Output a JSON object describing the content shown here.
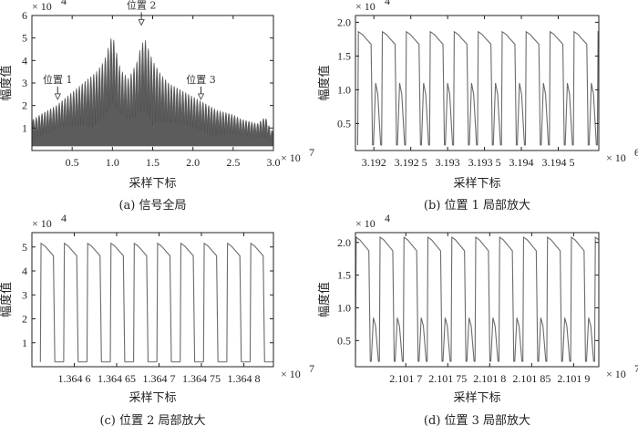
{
  "chart_data": [
    {
      "id": "a",
      "type": "area",
      "caption": "(a) 信号全局",
      "xlabel": "采样下标",
      "ylabel": "幅度值",
      "x_exponent": "× 10",
      "x_exponent_power": "7",
      "y_exponent": "× 10",
      "y_exponent_power": "4",
      "xlim": [
        0,
        3.0
      ],
      "ylim": [
        0,
        6
      ],
      "xticks": [
        0.5,
        1.0,
        1.5,
        2.0,
        2.5,
        3.0
      ],
      "xtick_labels": [
        "0.5",
        "1.0",
        "1.5",
        "2.0",
        "2.5",
        "3.0"
      ],
      "yticks": [
        1,
        2,
        3,
        4,
        5,
        6
      ],
      "ytick_labels": [
        "1",
        "2",
        "3",
        "4",
        "5",
        "6"
      ],
      "series": [
        {
          "x": [
            0.02,
            0.1,
            0.2,
            0.3,
            0.4,
            0.5,
            0.6,
            0.7,
            0.8,
            0.9,
            0.95,
            1.0,
            1.05,
            1.1,
            1.2,
            1.3,
            1.35,
            1.4,
            1.5,
            1.6,
            1.7,
            1.8,
            1.9,
            2.0,
            2.1,
            2.2,
            2.3,
            2.4,
            2.5,
            2.6,
            2.7,
            2.8,
            2.9,
            2.97
          ],
          "y": [
            1.4,
            1.6,
            1.8,
            2.0,
            2.3,
            2.6,
            2.9,
            3.2,
            3.5,
            4.0,
            4.6,
            5.2,
            4.4,
            3.6,
            3.2,
            3.9,
            4.6,
            5.0,
            4.0,
            3.4,
            3.0,
            2.8,
            2.6,
            2.4,
            2.2,
            2.0,
            1.8,
            1.7,
            1.6,
            1.4,
            1.3,
            1.2,
            1.5,
            0.9
          ],
          "floor": 0.2
        }
      ],
      "annotations": [
        {
          "text": "位置 1",
          "x": 0.32,
          "y": 2.6
        },
        {
          "text": "位置 2",
          "x": 1.36,
          "y": 5.9
        },
        {
          "text": "位置 3",
          "x": 2.1,
          "y": 2.6
        }
      ]
    },
    {
      "id": "b",
      "type": "line",
      "caption": "(b) 位置 1 局部放大",
      "xlabel": "采样下标",
      "ylabel": "幅度值",
      "x_exponent": "× 10",
      "x_exponent_power": "6",
      "y_exponent": "× 10",
      "y_exponent_power": "4",
      "xlim": [
        3.19175,
        3.19505
      ],
      "ylim": [
        0.1,
        2.1
      ],
      "xticks": [
        3.192,
        3.1925,
        3.193,
        3.1935,
        3.194,
        3.1945
      ],
      "xtick_labels": [
        "3.192",
        "3.192 5",
        "3.193",
        "3.193 5",
        "3.194",
        "3.194 5"
      ],
      "yticks": [
        0.5,
        1.0,
        1.5,
        2.0
      ],
      "ytick_labels": [
        "0.5",
        "1.0",
        "1.5",
        "2.0"
      ],
      "pulses": {
        "start": 3.19178,
        "period": 0.000325,
        "high_peak": 1.86,
        "low_peak": 1.1,
        "base": 0.18
      }
    },
    {
      "id": "c",
      "type": "line",
      "caption": "(c) 位置 2 局部放大",
      "xlabel": "采样下标",
      "ylabel": "幅度值",
      "x_exponent": "× 10",
      "x_exponent_power": "7",
      "y_exponent": "× 10",
      "y_exponent_power": "4",
      "xlim": [
        1.36455,
        1.364835
      ],
      "ylim": [
        0,
        5.6
      ],
      "xticks": [
        1.3646,
        1.36465,
        1.3647,
        1.36475,
        1.3648
      ],
      "xtick_labels": [
        "1.364 6",
        "1.364 65",
        "1.364 7",
        "1.364 75",
        "1.364 8"
      ],
      "yticks": [
        1,
        2,
        3,
        4,
        5
      ],
      "ytick_labels": [
        "1",
        "2",
        "3",
        "4",
        "5"
      ],
      "pulses": {
        "start": 1.36456,
        "period": 2.75e-05,
        "high_peak": 5.15,
        "base": 0.2
      }
    },
    {
      "id": "d",
      "type": "line",
      "caption": "(d) 位置 3 局部放大",
      "xlabel": "采样下标",
      "ylabel": "幅度值",
      "x_exponent": "× 10",
      "x_exponent_power": "7",
      "y_exponent": "× 10",
      "y_exponent_power": "4",
      "xlim": [
        2.10164,
        2.10193
      ],
      "ylim": [
        0.1,
        2.15
      ],
      "xticks": [
        2.1017,
        2.10175,
        2.1018,
        2.10185,
        2.1019
      ],
      "xtick_labels": [
        "2.101 7",
        "2.101 75",
        "2.101 8",
        "2.101 85",
        "2.101 9"
      ],
      "yticks": [
        0.5,
        1.0,
        1.5,
        2.0
      ],
      "ytick_labels": [
        "0.5",
        "1.0",
        "1.5",
        "2.0"
      ],
      "pulses": {
        "start": 2.10164,
        "period": 2.85e-05,
        "high_peak": 2.08,
        "low_peak": 0.85,
        "base": 0.18
      }
    }
  ]
}
